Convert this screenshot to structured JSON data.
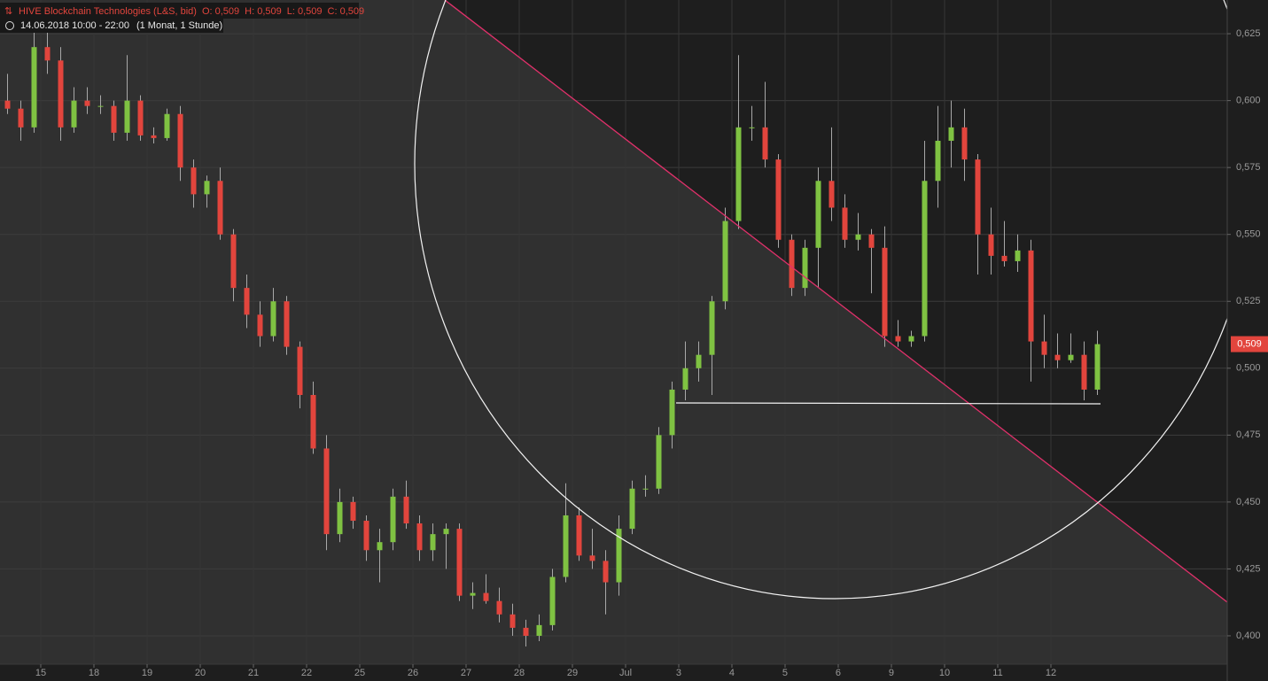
{
  "header": {
    "instrument": "HIVE Blockchain Technologies (L&S, bid)",
    "ohlc": [
      "O: 0,509",
      "H: 0,509",
      "L: 0,509",
      "C: 0,509"
    ],
    "period": "14.06.2018 10:00 - 22:00",
    "interval": "(1 Monat, 1 Stunde)"
  },
  "chart_data": {
    "type": "candlestick",
    "up_color": "#7fc242",
    "down_color": "#e2453d",
    "grid": true,
    "xlim": [
      -0.7667,
      22.3167
    ],
    "xticks": [
      {
        "value": 0,
        "label": "15"
      },
      {
        "value": 1,
        "label": "18"
      },
      {
        "value": 2,
        "label": "19"
      },
      {
        "value": 3,
        "label": "20"
      },
      {
        "value": 4,
        "label": "21"
      },
      {
        "value": 5,
        "label": "22"
      },
      {
        "value": 6,
        "label": "25"
      },
      {
        "value": 7,
        "label": "26"
      },
      {
        "value": 8,
        "label": "27"
      },
      {
        "value": 9,
        "label": "28"
      },
      {
        "value": 10,
        "label": "29"
      },
      {
        "value": 11,
        "label": "Jul"
      },
      {
        "value": 12,
        "label": "3"
      },
      {
        "value": 13,
        "label": "4"
      },
      {
        "value": 14,
        "label": "5"
      },
      {
        "value": 15,
        "label": "6"
      },
      {
        "value": 16,
        "label": "9"
      },
      {
        "value": 17,
        "label": "10"
      },
      {
        "value": 18,
        "label": "11"
      },
      {
        "value": 19,
        "label": "12"
      }
    ],
    "ylim": [
      0.3894,
      0.6376
    ],
    "yticks": [
      {
        "value": 0.4,
        "label": "0,400"
      },
      {
        "value": 0.425,
        "label": "0,425"
      },
      {
        "value": 0.45,
        "label": "0,450"
      },
      {
        "value": 0.475,
        "label": "0,475"
      },
      {
        "value": 0.5,
        "label": "0,500"
      },
      {
        "value": 0.525,
        "label": "0,525"
      },
      {
        "value": 0.55,
        "label": "0,550"
      },
      {
        "value": 0.575,
        "label": "0,575"
      },
      {
        "value": 0.6,
        "label": "0,600"
      },
      {
        "value": 0.625,
        "label": "0,625"
      }
    ],
    "last_price": {
      "value": 0.509,
      "label": "0,509"
    },
    "x": [
      -0.625,
      -0.375,
      -0.125,
      0.125,
      0.375,
      0.625,
      0.875,
      1.125,
      1.375,
      1.625,
      1.875,
      2.125,
      2.375,
      2.625,
      2.875,
      3.125,
      3.375,
      3.625,
      3.875,
      4.125,
      4.375,
      4.625,
      4.875,
      5.125,
      5.375,
      5.625,
      5.875,
      6.125,
      6.375,
      6.625,
      6.875,
      7.125,
      7.375,
      7.625,
      7.875,
      8.125,
      8.375,
      8.625,
      8.875,
      9.125,
      9.375,
      9.625,
      9.875,
      10.125,
      10.375,
      10.625,
      10.875,
      11.125,
      11.375,
      11.625,
      11.875,
      12.125,
      12.375,
      12.625,
      12.875,
      13.125,
      13.375,
      13.625,
      13.875,
      14.125,
      14.375,
      14.625,
      14.875,
      15.125,
      15.375,
      15.625,
      15.875,
      16.125,
      16.375,
      16.625,
      16.875,
      17.125,
      17.375,
      17.625,
      17.875,
      18.125,
      18.375,
      18.625,
      18.875,
      19.125,
      19.375,
      19.625,
      19.875
    ],
    "open": [
      0.6,
      0.597,
      0.59,
      0.62,
      0.615,
      0.59,
      0.6,
      0.598,
      0.598,
      0.588,
      0.6,
      0.587,
      0.586,
      0.595,
      0.575,
      0.565,
      0.57,
      0.55,
      0.53,
      0.52,
      0.512,
      0.525,
      0.508,
      0.49,
      0.47,
      0.438,
      0.45,
      0.443,
      0.432,
      0.435,
      0.452,
      0.442,
      0.432,
      0.438,
      0.44,
      0.415,
      0.416,
      0.413,
      0.408,
      0.403,
      0.4,
      0.404,
      0.422,
      0.445,
      0.43,
      0.428,
      0.42,
      0.44,
      0.455,
      0.455,
      0.475,
      0.492,
      0.5,
      0.505,
      0.525,
      0.555,
      0.59,
      0.59,
      0.578,
      0.548,
      0.53,
      0.545,
      0.57,
      0.56,
      0.548,
      0.55,
      0.545,
      0.512,
      0.51,
      0.512,
      0.57,
      0.585,
      0.59,
      0.578,
      0.55,
      0.542,
      0.54,
      0.544,
      0.51,
      0.505,
      0.503,
      0.505,
      0.492
    ],
    "high": [
      0.61,
      0.6,
      0.628,
      0.628,
      0.62,
      0.605,
      0.605,
      0.602,
      0.6,
      0.617,
      0.602,
      0.59,
      0.597,
      0.598,
      0.578,
      0.572,
      0.575,
      0.552,
      0.535,
      0.525,
      0.53,
      0.527,
      0.51,
      0.495,
      0.475,
      0.455,
      0.452,
      0.445,
      0.44,
      0.455,
      0.458,
      0.445,
      0.442,
      0.442,
      0.442,
      0.42,
      0.423,
      0.418,
      0.412,
      0.406,
      0.408,
      0.425,
      0.457,
      0.448,
      0.44,
      0.432,
      0.445,
      0.458,
      0.46,
      0.478,
      0.495,
      0.51,
      0.51,
      0.527,
      0.56,
      0.617,
      0.598,
      0.607,
      0.58,
      0.55,
      0.548,
      0.575,
      0.59,
      0.565,
      0.558,
      0.552,
      0.553,
      0.518,
      0.514,
      0.585,
      0.598,
      0.6,
      0.597,
      0.58,
      0.56,
      0.555,
      0.55,
      0.548,
      0.52,
      0.513,
      0.513,
      0.51,
      0.514
    ],
    "low": [
      0.595,
      0.585,
      0.588,
      0.61,
      0.585,
      0.588,
      0.595,
      0.595,
      0.585,
      0.585,
      0.585,
      0.584,
      0.585,
      0.57,
      0.56,
      0.56,
      0.548,
      0.525,
      0.515,
      0.508,
      0.51,
      0.505,
      0.485,
      0.468,
      0.432,
      0.435,
      0.44,
      0.428,
      0.42,
      0.432,
      0.44,
      0.428,
      0.428,
      0.425,
      0.413,
      0.41,
      0.412,
      0.405,
      0.4,
      0.396,
      0.398,
      0.402,
      0.42,
      0.428,
      0.425,
      0.408,
      0.415,
      0.438,
      0.452,
      0.453,
      0.47,
      0.488,
      0.495,
      0.49,
      0.522,
      0.552,
      0.585,
      0.575,
      0.545,
      0.527,
      0.527,
      0.53,
      0.555,
      0.545,
      0.544,
      0.528,
      0.508,
      0.508,
      0.508,
      0.51,
      0.56,
      0.575,
      0.57,
      0.535,
      0.535,
      0.538,
      0.536,
      0.495,
      0.5,
      0.5,
      0.502,
      0.488,
      0.49
    ],
    "close": [
      0.597,
      0.59,
      0.62,
      0.615,
      0.59,
      0.6,
      0.598,
      0.598,
      0.588,
      0.6,
      0.587,
      0.586,
      0.595,
      0.575,
      0.565,
      0.57,
      0.55,
      0.53,
      0.52,
      0.512,
      0.525,
      0.508,
      0.49,
      0.47,
      0.438,
      0.45,
      0.443,
      0.432,
      0.435,
      0.452,
      0.442,
      0.432,
      0.438,
      0.44,
      0.415,
      0.416,
      0.413,
      0.408,
      0.403,
      0.4,
      0.404,
      0.422,
      0.445,
      0.43,
      0.428,
      0.42,
      0.44,
      0.455,
      0.455,
      0.475,
      0.492,
      0.5,
      0.505,
      0.525,
      0.555,
      0.59,
      0.59,
      0.578,
      0.548,
      0.53,
      0.545,
      0.57,
      0.56,
      0.548,
      0.55,
      0.545,
      0.512,
      0.51,
      0.512,
      0.57,
      0.585,
      0.59,
      0.578,
      0.55,
      0.542,
      0.54,
      0.544,
      0.51,
      0.505,
      0.503,
      0.505,
      0.492,
      0.509
    ]
  }
}
